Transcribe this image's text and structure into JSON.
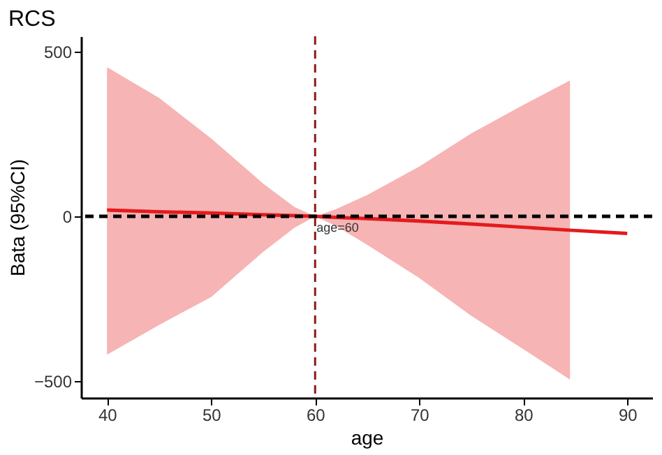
{
  "chart_data": {
    "type": "line",
    "title": "RCS",
    "xlabel": "age",
    "ylabel": "Bata (95%CI)",
    "xlim": [
      37.5,
      92.4
    ],
    "ylim": [
      -551,
      547
    ],
    "xticks": [
      40,
      50,
      60,
      70,
      80,
      90
    ],
    "yticks": [
      -500,
      0,
      500
    ],
    "grid": false,
    "series": [
      {
        "color": "#e41a1c",
        "x": [
          40,
          45,
          50,
          55,
          58,
          60,
          62,
          65,
          70,
          75,
          80,
          84.5,
          90
        ],
        "values": [
          19,
          14,
          10,
          5,
          2,
          0,
          -3,
          -7,
          -14,
          -23,
          -33,
          -42,
          -52
        ],
        "lower": [
          -420,
          -330,
          -245,
          -108,
          -35,
          0,
          -29,
          -86,
          -187,
          -302,
          -403,
          -496,
          null
        ],
        "upper": [
          453,
          360,
          237,
          100,
          29,
          0,
          22,
          65,
          151,
          252,
          338,
          413,
          null
        ]
      }
    ],
    "ref_lines": [
      {
        "axis": "y",
        "value": 0,
        "color": "#000000",
        "line_style": "dashed"
      },
      {
        "axis": "x",
        "value": 60,
        "label": "age=60",
        "color": "#8b1a1a",
        "line_style": "dashed"
      }
    ]
  }
}
